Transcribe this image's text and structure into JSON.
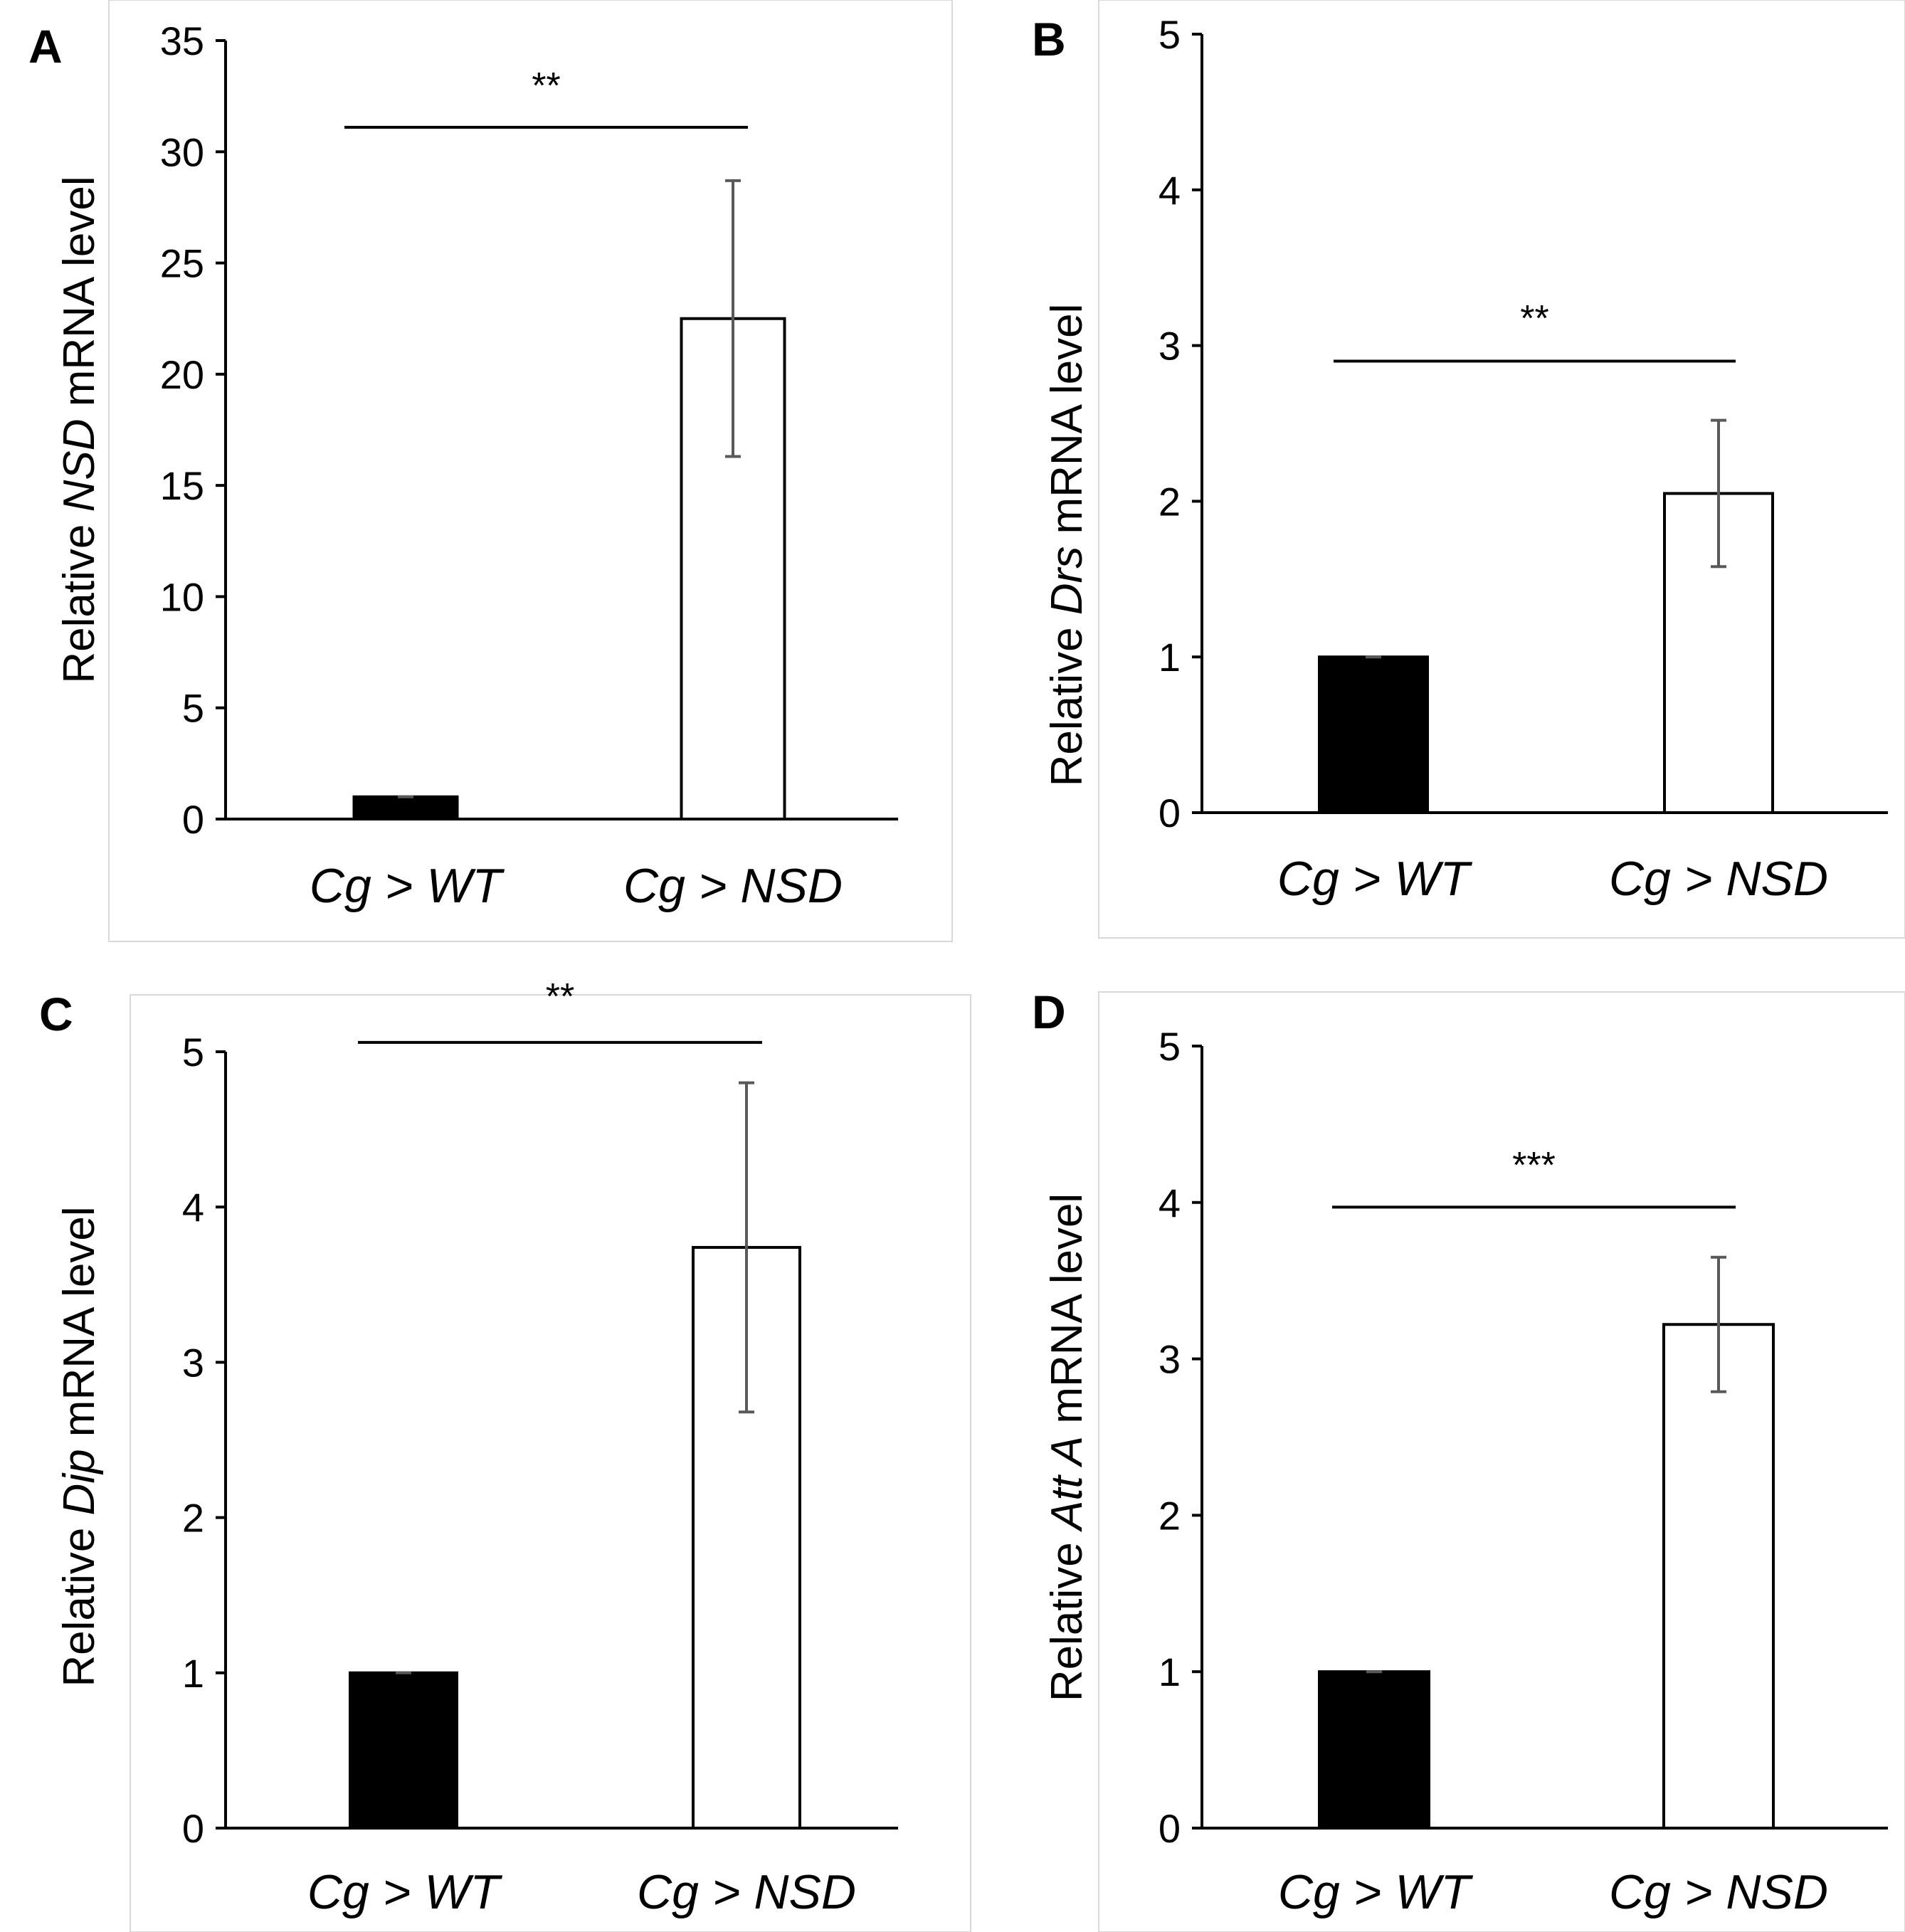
{
  "figure": {
    "panels": [
      "A",
      "B",
      "C",
      "D"
    ]
  },
  "chart_data": [
    {
      "panel": "A",
      "type": "bar",
      "categories": [
        "Cg > WT",
        "Cg > NSD"
      ],
      "series": [
        {
          "values": [
            1.0,
            22.5
          ],
          "errors": [
            0.0,
            6.2
          ],
          "fills": [
            "#000000",
            "#ffffff"
          ]
        }
      ],
      "ylabel_parts": [
        {
          "text": "Relative ",
          "italic": false
        },
        {
          "text": "NSD",
          "italic": true
        },
        {
          "text": " mRNA level",
          "italic": false
        }
      ],
      "ylim": [
        0,
        35
      ],
      "yticks": [
        0,
        5,
        10,
        15,
        20,
        25,
        30,
        35
      ],
      "significance": {
        "label": "**",
        "y": 31.1
      },
      "grid": false
    },
    {
      "panel": "B",
      "type": "bar",
      "categories": [
        "Cg > WT",
        "Cg > NSD"
      ],
      "series": [
        {
          "values": [
            1.0,
            2.05
          ],
          "errors": [
            0.0,
            0.47
          ],
          "fills": [
            "#000000",
            "#ffffff"
          ]
        }
      ],
      "ylabel_parts": [
        {
          "text": "Relative ",
          "italic": false
        },
        {
          "text": "Drs",
          "italic": true
        },
        {
          "text": " mRNA level",
          "italic": false
        }
      ],
      "ylim": [
        0,
        5
      ],
      "yticks": [
        0,
        1,
        2,
        3,
        4,
        5
      ],
      "significance": {
        "label": "**",
        "y": 2.9
      },
      "grid": false
    },
    {
      "panel": "C",
      "type": "bar",
      "categories": [
        "Cg > WT",
        "Cg > NSD"
      ],
      "series": [
        {
          "values": [
            1.0,
            3.74
          ],
          "errors": [
            0.0,
            1.06
          ],
          "fills": [
            "#000000",
            "#ffffff"
          ]
        }
      ],
      "ylabel_parts": [
        {
          "text": "Relative ",
          "italic": false
        },
        {
          "text": "Dip",
          "italic": true
        },
        {
          "text": " mRNA level",
          "italic": false
        }
      ],
      "ylim": [
        0,
        5
      ],
      "yticks": [
        0,
        1,
        2,
        3,
        4,
        5
      ],
      "significance": {
        "label": "**",
        "y": 5.06
      },
      "grid": false
    },
    {
      "panel": "D",
      "type": "bar",
      "categories": [
        "Cg > WT",
        "Cg > NSD"
      ],
      "series": [
        {
          "values": [
            1.0,
            3.22
          ],
          "errors": [
            0.0,
            0.43
          ],
          "fills": [
            "#000000",
            "#ffffff"
          ]
        }
      ],
      "ylabel_parts": [
        {
          "text": "Relative ",
          "italic": false
        },
        {
          "text": "Att A",
          "italic": true
        },
        {
          "text": " mRNA level",
          "italic": false
        }
      ],
      "ylim": [
        0,
        5
      ],
      "yticks": [
        0,
        1,
        2,
        3,
        4,
        5
      ],
      "significance": {
        "label": "***",
        "y": 3.97
      },
      "grid": false
    }
  ]
}
